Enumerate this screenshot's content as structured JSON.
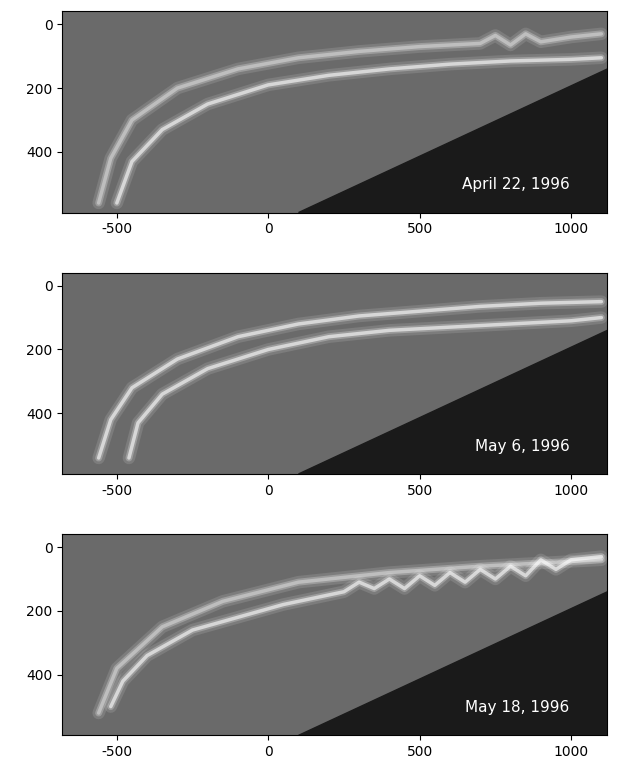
{
  "chart_data": [
    {
      "type": "line",
      "annotations": [
        "April 22, 1996"
      ],
      "xlim": [
        -680,
        1120
      ],
      "ylim": [
        590,
        -40
      ],
      "xticks": [
        -500,
        0,
        500,
        1000
      ],
      "yticks": [
        0,
        200,
        400
      ],
      "color": "#ffffff",
      "masked_region": {
        "x": [
          100,
          1120,
          1120
        ],
        "y": [
          590,
          140,
          590
        ],
        "color": "#1a1a1a"
      },
      "series": [
        {
          "x": [
            -560,
            -520,
            -450,
            -300,
            -100,
            100,
            300,
            500,
            700,
            750,
            800,
            850,
            900,
            1000,
            1100
          ],
          "y": [
            560,
            420,
            300,
            200,
            140,
            105,
            85,
            70,
            60,
            35,
            65,
            30,
            55,
            40,
            30
          ]
        },
        {
          "x": [
            -500,
            -450,
            -350,
            -200,
            0,
            200,
            400,
            600,
            800,
            1000,
            1100
          ],
          "y": [
            560,
            430,
            330,
            250,
            190,
            160,
            140,
            125,
            115,
            110,
            105
          ]
        }
      ]
    },
    {
      "type": "line",
      "annotations": [
        "May 6, 1996"
      ],
      "xlim": [
        -680,
        1120
      ],
      "ylim": [
        590,
        -40
      ],
      "xticks": [
        -500,
        0,
        500,
        1000
      ],
      "yticks": [
        0,
        200,
        400
      ],
      "color": "#ffffff",
      "masked_region": {
        "x": [
          100,
          1120,
          1120
        ],
        "y": [
          590,
          140,
          590
        ],
        "color": "#1a1a1a"
      },
      "series": [
        {
          "x": [
            -560,
            -520,
            -450,
            -300,
            -100,
            100,
            300,
            500,
            700,
            900,
            1100
          ],
          "y": [
            540,
            420,
            320,
            230,
            160,
            120,
            95,
            80,
            65,
            55,
            50
          ]
        },
        {
          "x": [
            -460,
            -430,
            -350,
            -200,
            0,
            200,
            400,
            600,
            800,
            1000,
            1100
          ],
          "y": [
            540,
            430,
            340,
            260,
            200,
            160,
            140,
            130,
            120,
            110,
            100
          ]
        }
      ]
    },
    {
      "type": "line",
      "annotations": [
        "May 18, 1996"
      ],
      "xlim": [
        -680,
        1120
      ],
      "ylim": [
        590,
        -40
      ],
      "xticks": [
        -500,
        0,
        500,
        1000
      ],
      "yticks": [
        0,
        200,
        400
      ],
      "color": "#ffffff",
      "masked_region": {
        "x": [
          100,
          1120,
          1120
        ],
        "y": [
          590,
          140,
          590
        ],
        "color": "#1a1a1a"
      },
      "series": [
        {
          "x": [
            -560,
            -500,
            -350,
            -150,
            100,
            400,
            700,
            1100
          ],
          "y": [
            520,
            380,
            250,
            170,
            110,
            80,
            60,
            40
          ]
        },
        {
          "x": [
            -520,
            -480,
            -400,
            -250,
            -100,
            50,
            150,
            250,
            300,
            350,
            400,
            450,
            500,
            550,
            600,
            650,
            700,
            750,
            800,
            850,
            900,
            950,
            1000,
            1100
          ],
          "y": [
            500,
            420,
            340,
            260,
            220,
            180,
            160,
            140,
            110,
            130,
            100,
            130,
            90,
            120,
            80,
            110,
            70,
            100,
            60,
            90,
            40,
            70,
            40,
            30
          ]
        }
      ]
    }
  ]
}
